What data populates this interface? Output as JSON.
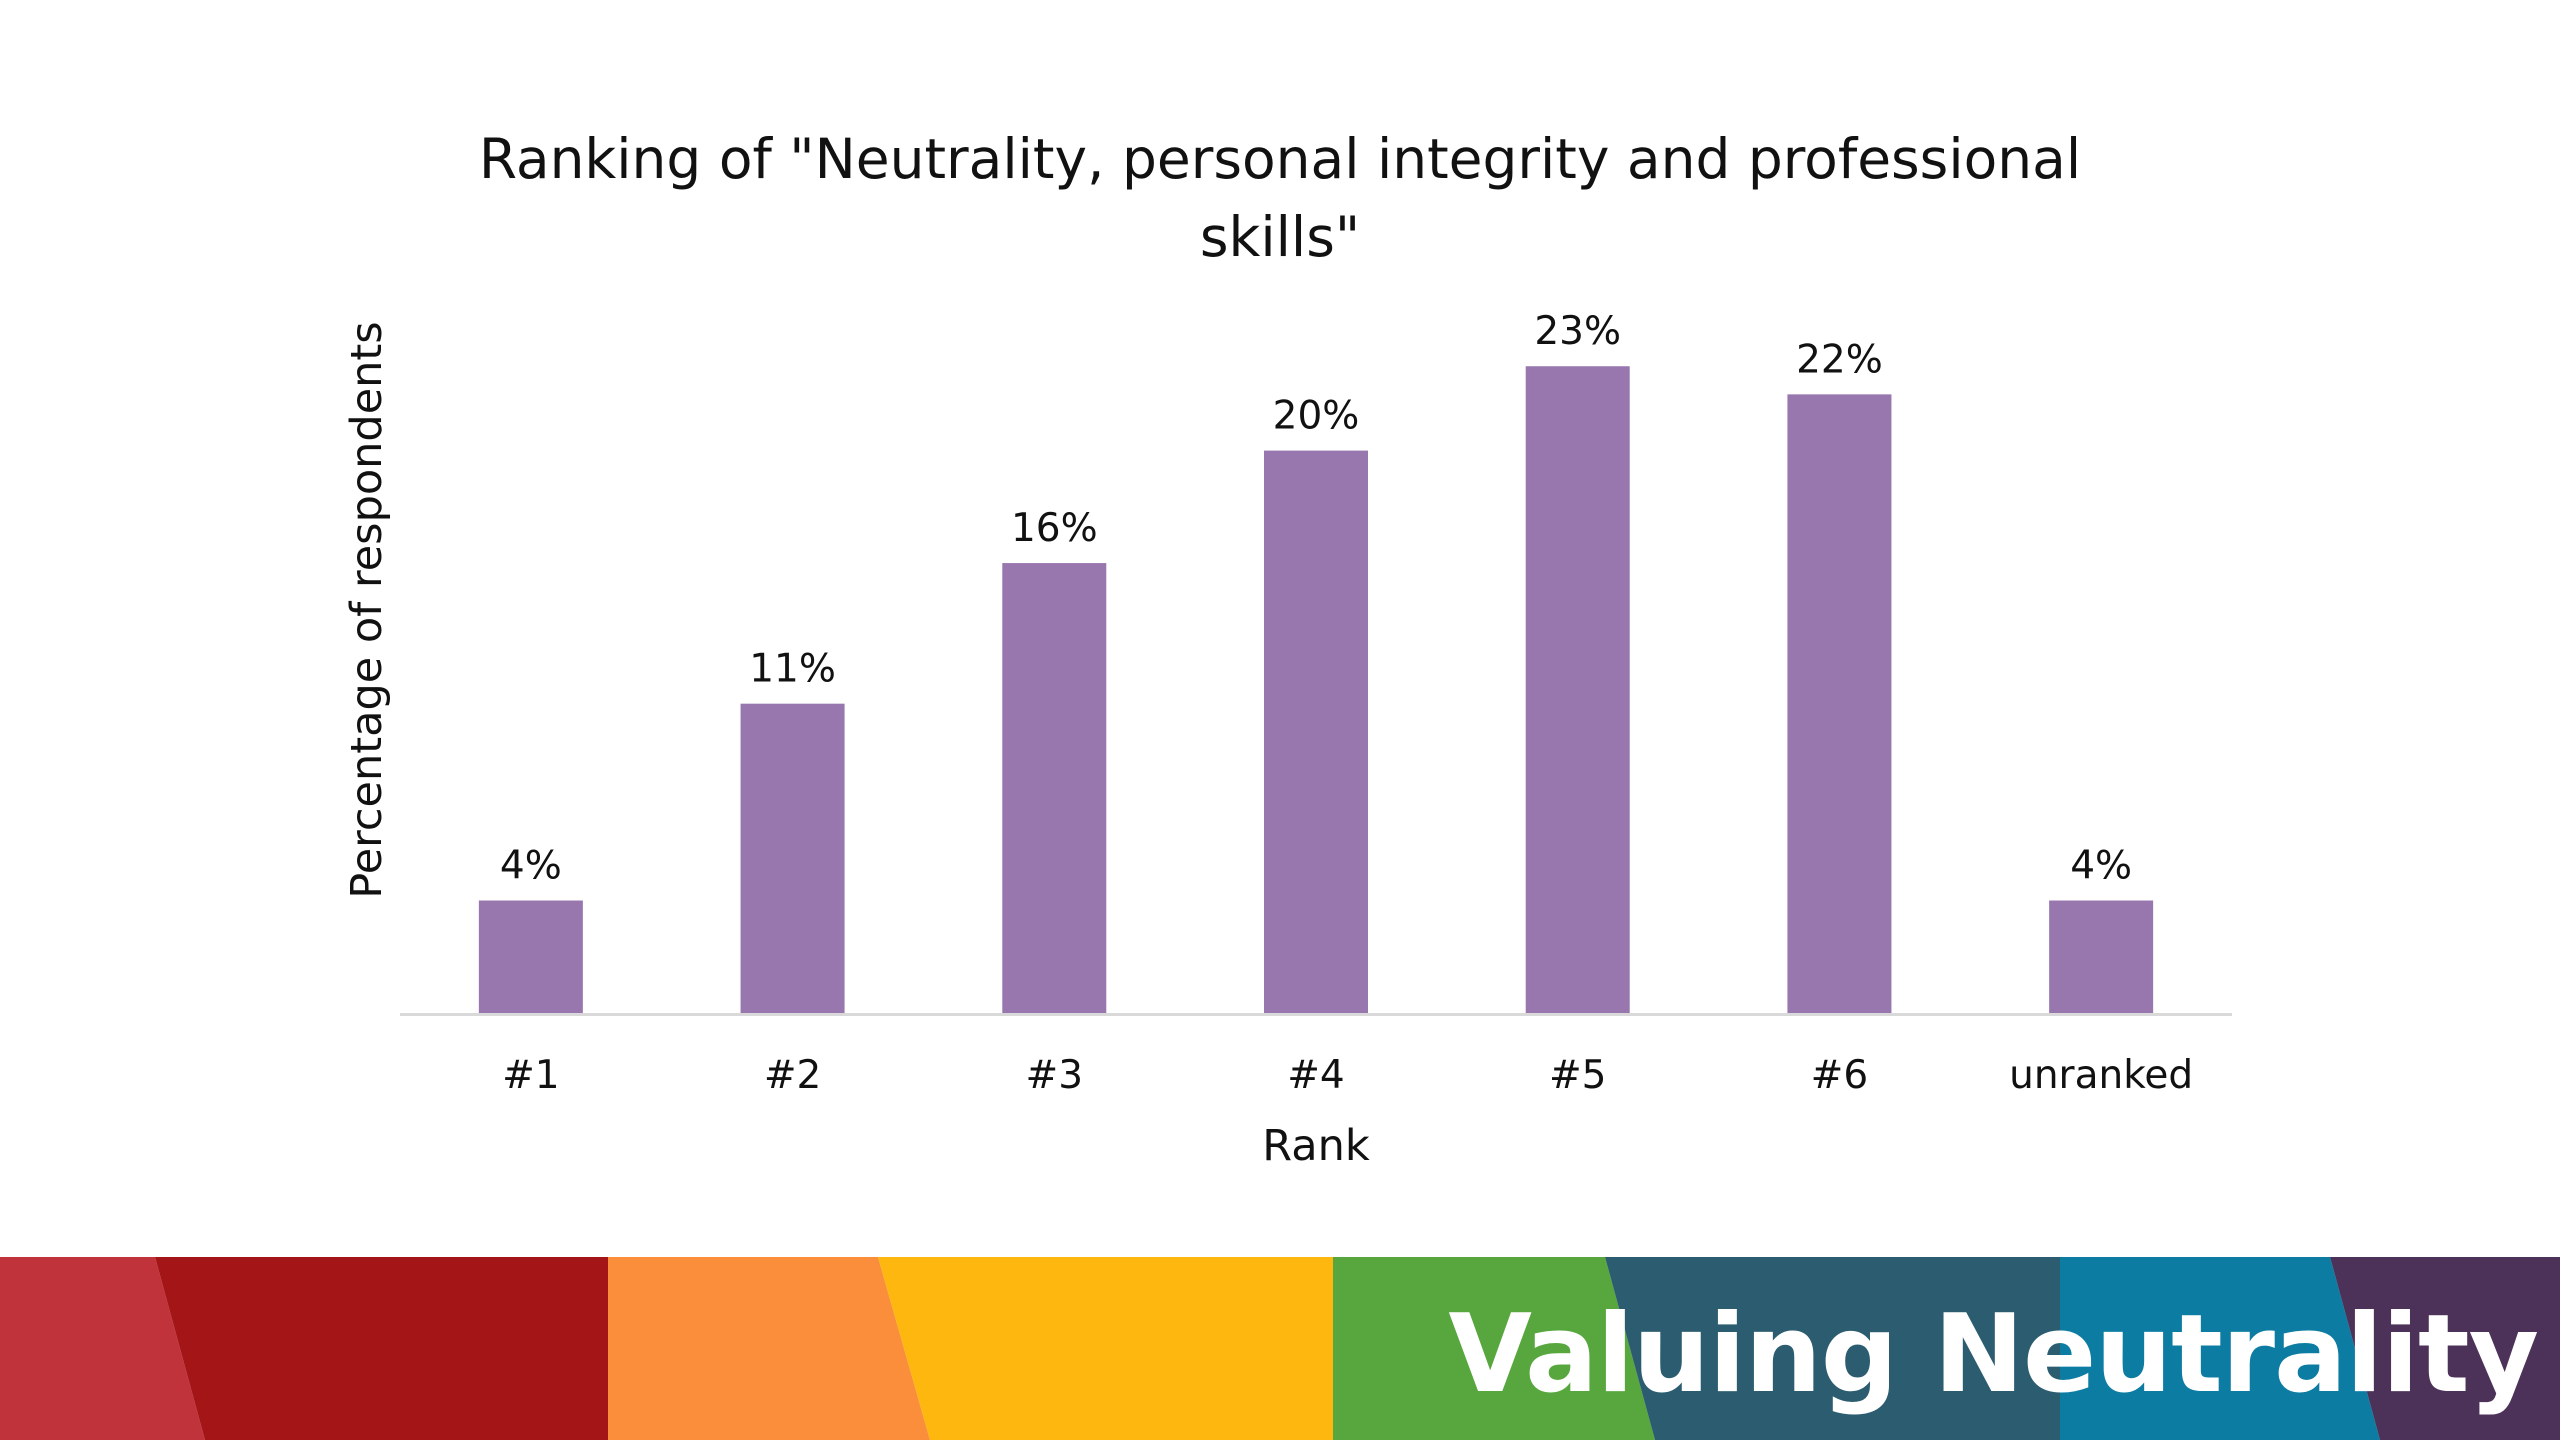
{
  "slide": {
    "brand_text": "Valuing Neutrality"
  },
  "chart_data": {
    "type": "bar",
    "title_lines": [
      "Ranking of \"Neutrality, personal integrity and professional",
      "skills\""
    ],
    "xlabel": "Rank",
    "ylabel": "Percentage of respondents",
    "categories": [
      "#1",
      "#2",
      "#3",
      "#4",
      "#5",
      "#6",
      "unranked"
    ],
    "values": [
      4,
      11,
      16,
      20,
      23,
      22,
      4
    ],
    "value_labels": [
      "4%",
      "11%",
      "16%",
      "20%",
      "23%",
      "22%",
      "4%"
    ],
    "ylim": [
      0,
      25
    ],
    "grid": false,
    "legend": "none",
    "bar_color": "#9876AE"
  },
  "banner": {
    "colors": [
      "#C1333A",
      "#A31517",
      "#FA8E3A",
      "#FDB70E",
      "#58A73E",
      "#2B5C6F",
      "#0D7CA2",
      "#4C3159"
    ]
  }
}
